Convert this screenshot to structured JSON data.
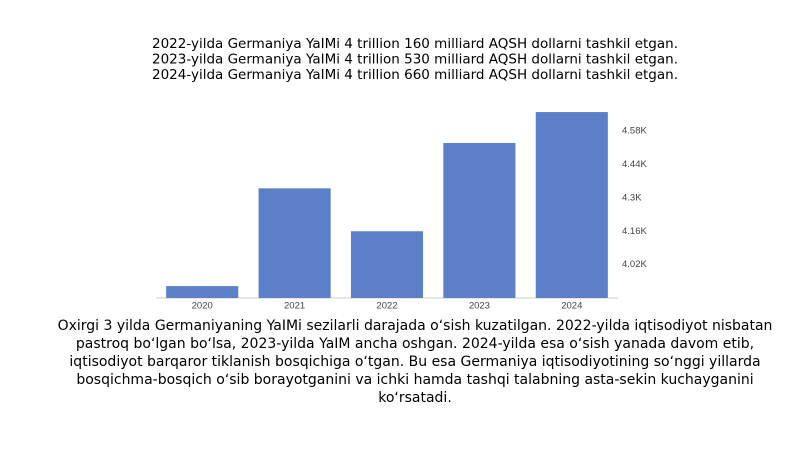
{
  "header_lines": [
    "2022-yilda Germaniya YaIMi  4 trillion 160 milliard AQSH dollarni tashkil etgan.",
    "2023-yilda Germaniya YaIMi  4 trillion 530 milliard AQSH dollarni tashkil etgan.",
    "2024-yilda Germaniya YaIMi  4 trillion 660 milliard AQSH dollarni tashkil etgan."
  ],
  "chart_data": {
    "type": "bar",
    "categories": [
      "2020",
      "2021",
      "2022",
      "2023",
      "2024"
    ],
    "values": [
      3930,
      4340,
      4160,
      4530,
      4660
    ],
    "color": "#5b80c8",
    "ylim": [
      3880,
      4700
    ],
    "yticks": [
      {
        "value": 4020,
        "label": "4.02K"
      },
      {
        "value": 4160,
        "label": "4.16K"
      },
      {
        "value": 4300,
        "label": "4.3K"
      },
      {
        "value": 4440,
        "label": "4.44K"
      },
      {
        "value": 4580,
        "label": "4.58K"
      }
    ],
    "grid": false
  },
  "paragraph_lines": [
    "Oxirgi 3 yilda Germaniyaning YaIMi sezilarli darajada oʻsish kuzatilgan. 2022-yilda iqtisodiyot nisbatan",
    "pastroq boʻlgan boʻlsa, 2023-yilda YaIM ancha oshgan. 2024-yilda esa oʻsish yanada davom etib,",
    "iqtisodiyot barqaror tiklanish bosqichiga oʻtgan. Bu esa Germaniya iqtisodiyotining soʻnggi yillarda",
    "bosqichma-bosqich oʻsib borayotganini va ichki hamda tashqi talabning asta-sekin kuchayganini",
    "koʻrsatadi."
  ]
}
